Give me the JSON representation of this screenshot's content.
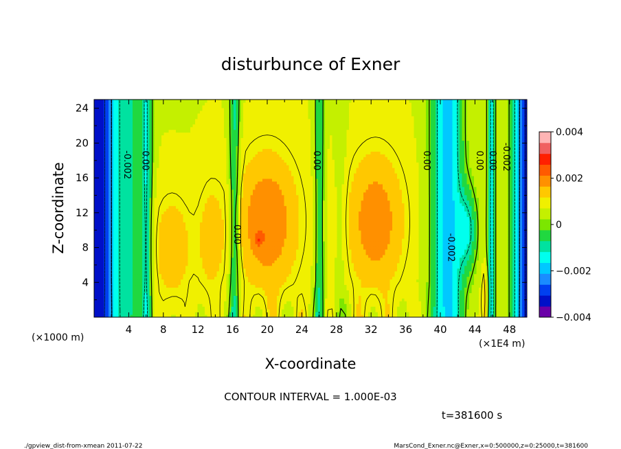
{
  "chart_data": {
    "type": "heatmap",
    "title": "disturbunce of Exner",
    "xlabel": "X-coordinate",
    "ylabel": "Z-coordinate",
    "x_unit_left": "(×1000 m)",
    "x_unit_right": "(×1E4 m)",
    "xlim": [
      0,
      50
    ],
    "ylim": [
      0,
      25
    ],
    "x_ticks": [
      "4",
      "8",
      "12",
      "16",
      "20",
      "24",
      "28",
      "32",
      "36",
      "40",
      "44",
      "48"
    ],
    "y_ticks": [
      "4",
      "8",
      "12",
      "16",
      "20",
      "24"
    ],
    "contour_labels": [
      {
        "text": "-0.002",
        "x": 3.9,
        "z": 17.5
      },
      {
        "text": "0.00",
        "x": 6.0,
        "z": 18.0
      },
      {
        "text": "0.00",
        "x": 16.6,
        "z": 9.5
      },
      {
        "text": "0.00",
        "x": 25.8,
        "z": 18.0
      },
      {
        "text": "0.00",
        "x": 38.5,
        "z": 18.0
      },
      {
        "text": "-0.002",
        "x": 41.3,
        "z": 8.0
      },
      {
        "text": "0.00",
        "x": 44.6,
        "z": 18.0
      },
      {
        "text": "0.00",
        "x": 46.1,
        "z": 18.0
      },
      {
        "text": "-0.002",
        "x": 47.7,
        "z": 18.4
      }
    ],
    "colorbar": {
      "range": [
        -0.004,
        0.004
      ],
      "tick_labels": [
        "0.004",
        "0.002",
        "0",
        "−0.002",
        "−0.004"
      ],
      "colors": [
        "#6a00a8",
        "#0010c8",
        "#0040f0",
        "#1a8cff",
        "#00c8ff",
        "#00ffee",
        "#00e2a0",
        "#20d840",
        "#7ce600",
        "#c4f000",
        "#f0f000",
        "#ffc800",
        "#ff9000",
        "#ff5a00",
        "#ff2000",
        "#f06060",
        "#ffb4b4"
      ]
    },
    "contour_interval_text": "CONTOUR INTERVAL = 1.000E-03",
    "time_text": "t=381600 s",
    "footer_left": "./gpview_dist-from-xmean  2011-07-22",
    "footer_right": "MarsCond_Exner.nc@Exner,x=0:500000,z=0:25000,t=381600"
  }
}
